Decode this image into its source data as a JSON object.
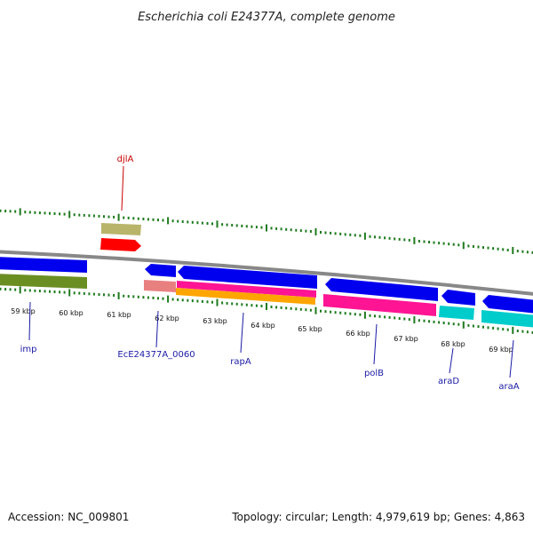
{
  "title": "Escherichia coli E24377A, complete genome",
  "footer": {
    "accession": "Accession: NC_009801",
    "summary": "Topology: circular; Length: 4,979,619 bp; Genes: 4,863"
  },
  "colors": {
    "forward_gene": "#0000ee",
    "backbone": "#888888",
    "tick": "#1e7a1e",
    "label_blue": "#1a1aa6",
    "label_red": "#cc0000"
  },
  "ticks": [
    {
      "label": "59 kbp"
    },
    {
      "label": "60 kbp"
    },
    {
      "label": "61 kbp"
    },
    {
      "label": "62 kbp"
    },
    {
      "label": "63 kbp"
    },
    {
      "label": "64 kbp"
    },
    {
      "label": "65 kbp"
    },
    {
      "label": "66 kbp"
    },
    {
      "label": "67 kbp"
    },
    {
      "label": "68 kbp"
    },
    {
      "label": "69 kbp"
    }
  ],
  "gene_labels": [
    {
      "name": "djlA",
      "color": "red"
    },
    {
      "name": "imp",
      "color": "blue"
    },
    {
      "name": "EcE24377A_0060",
      "color": "blue"
    },
    {
      "name": "rapA",
      "color": "blue"
    },
    {
      "name": "polB",
      "color": "blue"
    },
    {
      "name": "araD",
      "color": "blue"
    },
    {
      "name": "araA",
      "color": "blue"
    }
  ]
}
